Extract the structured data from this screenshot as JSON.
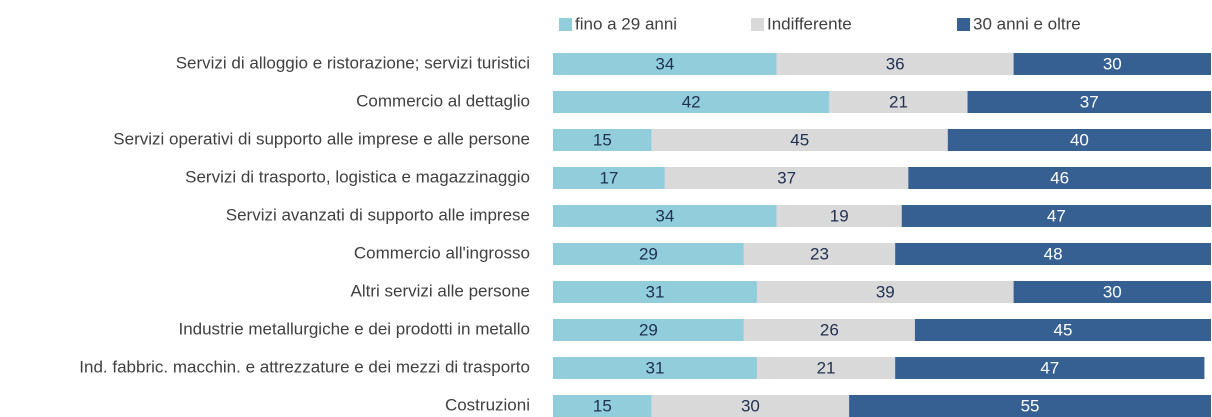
{
  "chart_data": {
    "type": "stacked_bar_horizontal",
    "categories": [
      "Servizi di alloggio e ristorazione; servizi turistici",
      "Commercio al dettaglio",
      "Servizi operativi di supporto alle imprese e alle persone",
      "Servizi di trasporto, logistica e magazzinaggio",
      "Servizi avanzati di supporto alle imprese",
      "Commercio all'ingrosso",
      "Altri servizi alle persone",
      "Industrie metallurgiche e dei prodotti in metallo",
      "Ind. fabbric. macchin. e attrezzature e dei mezzi di trasporto",
      "Costruzioni"
    ],
    "series": [
      {
        "name": "fino a 29 anni",
        "color": "#92cddc",
        "label_color": "#1f3050",
        "values": [
          34,
          42,
          15,
          17,
          34,
          29,
          31,
          29,
          31,
          15
        ]
      },
      {
        "name": "Indifferente",
        "color": "#d9d9d9",
        "label_color": "#1f3050",
        "values": [
          36,
          21,
          45,
          37,
          19,
          23,
          39,
          26,
          21,
          30
        ]
      },
      {
        "name": "30 anni e oltre",
        "color": "#376092",
        "label_color": "#ffffff",
        "values": [
          30,
          37,
          40,
          46,
          47,
          48,
          30,
          45,
          47,
          55
        ]
      }
    ],
    "xlim": [
      0,
      100
    ],
    "legend": "top"
  }
}
